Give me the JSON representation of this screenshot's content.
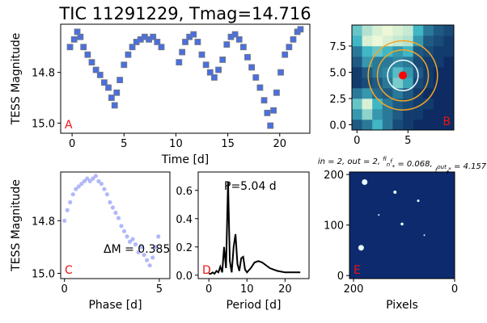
{
  "chart_data": [
    {
      "type": "scatter",
      "title": "TIC 11291229, Tmag=14.716",
      "xlabel": "Time [d]",
      "ylabel": "TESS Magnitude",
      "panel_label": "A",
      "x": [
        -0.2,
        0.2,
        0.5,
        0.8,
        1.1,
        1.5,
        1.9,
        2.3,
        2.7,
        3.1,
        3.5,
        3.8,
        4.1,
        4.3,
        4.6,
        5.0,
        5.4,
        5.8,
        6.2,
        6.6,
        7.0,
        7.4,
        7.8,
        8.2,
        8.6,
        10.3,
        10.6,
        10.9,
        11.3,
        11.7,
        12.1,
        12.5,
        12.9,
        13.3,
        13.7,
        14.1,
        14.5,
        14.9,
        15.3,
        15.7,
        16.1,
        16.5,
        16.9,
        17.3,
        17.7,
        18.1,
        18.5,
        18.8,
        19.1,
        19.4,
        19.7,
        20.1,
        20.5,
        20.9,
        21.3,
        21.7,
        22.0
      ],
      "y": [
        14.7,
        14.67,
        14.64,
        14.66,
        14.7,
        14.73,
        14.76,
        14.79,
        14.81,
        14.84,
        14.86,
        14.9,
        14.93,
        14.88,
        14.83,
        14.77,
        14.73,
        14.7,
        14.68,
        14.67,
        14.66,
        14.67,
        14.66,
        14.68,
        14.7,
        14.76,
        14.72,
        14.68,
        14.66,
        14.65,
        14.68,
        14.73,
        14.77,
        14.8,
        14.82,
        14.79,
        14.75,
        14.69,
        14.66,
        14.65,
        14.67,
        14.7,
        14.74,
        14.78,
        14.82,
        14.86,
        14.91,
        14.96,
        15.01,
        14.95,
        14.88,
        14.8,
        14.73,
        14.7,
        14.67,
        14.64,
        14.63
      ],
      "color": "#4a6fe0",
      "marker": "square",
      "xlim": [
        -1.1,
        22.9
      ],
      "ylim": [
        15.04,
        14.61
      ],
      "xticks": [
        0,
        5,
        10,
        15,
        20
      ],
      "yticks": [
        14.8,
        {
          "value": 15,
          "label": "15.0"
        }
      ]
    },
    {
      "type": "heatmap",
      "panel_label": "B",
      "z": [
        [
          0.2,
          0.3,
          0.5,
          0.3,
          0.15,
          0.1,
          0.05,
          0.05,
          0.05,
          0.05
        ],
        [
          0.4,
          0.7,
          0.4,
          0.3,
          0.2,
          0.1,
          0.1,
          0.05,
          0.05,
          0.05
        ],
        [
          0.6,
          0.9,
          0.5,
          0.3,
          0.2,
          0.15,
          0.1,
          0.1,
          0.05,
          0.05
        ],
        [
          0.3,
          0.4,
          0.25,
          0.2,
          0.3,
          0.2,
          0.1,
          0.05,
          0.05,
          0.05
        ],
        [
          0.1,
          0.15,
          0.2,
          0.3,
          0.65,
          0.45,
          0.15,
          0.1,
          0.05,
          0.05
        ],
        [
          0.1,
          0.2,
          0.3,
          0.35,
          0.55,
          0.4,
          0.2,
          0.1,
          0.05,
          0.05
        ],
        [
          0.2,
          0.4,
          0.3,
          0.3,
          0.35,
          0.3,
          0.15,
          0.1,
          0.1,
          0.05
        ],
        [
          0.3,
          0.5,
          0.6,
          0.5,
          0.4,
          0.5,
          0.2,
          0.15,
          0.1,
          0.1
        ],
        [
          0.5,
          0.9,
          0.95,
          0.9,
          0.85,
          0.8,
          0.4,
          0.2,
          0.15,
          0.1
        ],
        [
          0.6,
          0.8,
          0.9,
          0.95,
          0.9,
          0.85,
          0.5,
          0.3,
          0.2,
          0.15
        ]
      ],
      "colormap": [
        "#081d58",
        "#41b6c4",
        "#ffffd9"
      ],
      "target": [
        4.5,
        4.7
      ],
      "target_color": "#ff0000",
      "apertures": [
        {
          "radius": 1.5,
          "color": "#ffffff"
        },
        {
          "radius": 2.5,
          "color": "#f5a623"
        },
        {
          "radius": 3.4,
          "color": "#f5a623"
        }
      ],
      "xlim": [
        -0.5,
        9.5
      ],
      "ylim": [
        -0.5,
        9.5
      ],
      "xticks": [
        0,
        5
      ],
      "yticks": [
        {
          "value": 0,
          "label": "0.0"
        },
        2.5,
        {
          "value": 5,
          "label": "5.0"
        },
        7.5
      ]
    },
    {
      "type": "scatter",
      "xlabel": "Phase [d]",
      "ylabel": "TESS Magnitude",
      "panel_label": "C",
      "annotation": "ΔM = 0.385",
      "x": [
        0.0,
        0.15,
        0.3,
        0.45,
        0.6,
        0.75,
        0.9,
        1.05,
        1.2,
        1.35,
        1.5,
        1.65,
        1.8,
        1.95,
        2.1,
        2.25,
        2.4,
        2.55,
        2.7,
        2.85,
        3.0,
        3.15,
        3.3,
        3.45,
        3.6,
        3.75,
        3.9,
        4.05,
        4.2,
        4.35,
        4.5,
        4.65,
        4.8,
        4.95
      ],
      "y": [
        14.8,
        14.76,
        14.73,
        14.7,
        14.68,
        14.67,
        14.66,
        14.65,
        14.64,
        14.65,
        14.64,
        14.63,
        14.65,
        14.66,
        14.68,
        14.7,
        14.73,
        14.75,
        14.77,
        14.79,
        14.82,
        14.84,
        14.86,
        14.88,
        14.87,
        14.89,
        14.92,
        14.9,
        14.93,
        14.95,
        14.97,
        14.94,
        14.9,
        14.86
      ],
      "color": "#2233ee",
      "marker": "circle",
      "xlim": [
        -0.2,
        5.56
      ],
      "ylim": [
        15.02,
        14.615
      ],
      "xticks": [
        0,
        5
      ],
      "yticks": [
        14.8,
        {
          "value": 15,
          "label": "15.0"
        }
      ]
    },
    {
      "type": "line",
      "xlabel": "Period [d]",
      "panel_label": "D",
      "annotation": "P=5.04 d",
      "x": [
        0,
        0.5,
        1,
        1.5,
        2,
        2.5,
        3,
        3.5,
        4,
        4.5,
        5.04,
        5.5,
        6,
        6.5,
        7,
        7.5,
        8,
        8.5,
        9,
        9.5,
        10,
        11,
        12,
        13,
        14,
        15,
        16,
        17,
        18,
        19,
        20,
        21,
        22,
        23,
        24
      ],
      "y": [
        0.01,
        0.01,
        0.02,
        0.01,
        0.03,
        0.02,
        0.06,
        0.02,
        0.2,
        0.05,
        0.66,
        0.1,
        0.02,
        0.2,
        0.29,
        0.08,
        0.03,
        0.12,
        0.13,
        0.04,
        0.02,
        0.05,
        0.09,
        0.1,
        0.09,
        0.07,
        0.05,
        0.04,
        0.03,
        0.025,
        0.02,
        0.02,
        0.02,
        0.02,
        0.02
      ],
      "color": "#000000",
      "xlim": [
        -2.8,
        26.3
      ],
      "ylim": [
        -0.024,
        0.73
      ],
      "xticks": [
        0,
        10,
        20
      ],
      "yticks": [
        {
          "value": 0,
          "label": "0.0"
        },
        0.2,
        0.4,
        0.6
      ]
    },
    {
      "type": "image",
      "xlabel": "Pixels",
      "panel_label": "E",
      "title_parts": [
        "in = 2, out = 2, ",
        "f",
        "in",
        "f",
        "*",
        " = 0.068, ",
        "f",
        "out",
        "f",
        "*",
        " = 4.157"
      ],
      "background": "#0d2a6e",
      "x": [
        178,
        118,
        72,
        104,
        185,
        150,
        60
      ],
      "y": [
        185,
        165,
        148,
        102,
        55,
        120,
        80
      ],
      "sizes": [
        3.5,
        2,
        1.5,
        1.8,
        3.5,
        1,
        1
      ],
      "color": "#e8fbff",
      "xlim": [
        208,
        0
      ],
      "ylim": [
        -6,
        205
      ],
      "xticks": [
        200,
        0
      ],
      "yticks": [
        0,
        100,
        200
      ]
    }
  ]
}
